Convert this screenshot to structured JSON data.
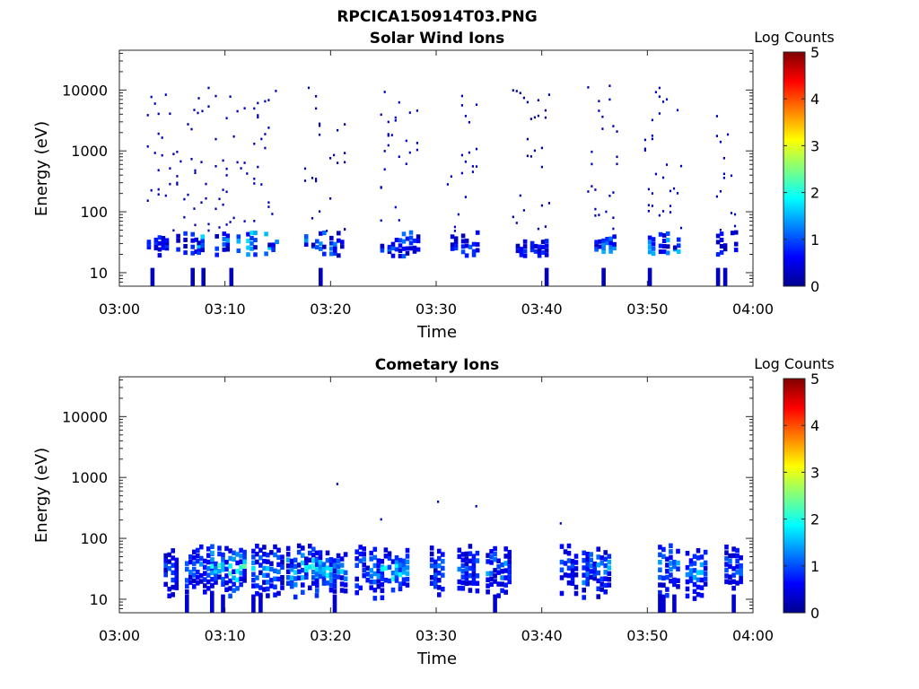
{
  "figure_title": "RPCICA150914T03.PNG",
  "chart_data": [
    {
      "type": "heatmap",
      "title": "Solar Wind Ions",
      "xlabel": "Time",
      "ylabel": "Energy (eV)",
      "y_scale": "log",
      "x_ticks": [
        "03:00",
        "03:10",
        "03:20",
        "03:30",
        "03:40",
        "03:50",
        "04:00"
      ],
      "y_ticks": [
        10,
        100,
        1000,
        10000
      ],
      "xlim": [
        "03:00",
        "04:00"
      ],
      "ylim": [
        6,
        45000
      ],
      "colorbar": {
        "label": "Log Counts",
        "ticks": [
          0,
          1,
          2,
          3,
          4,
          5
        ],
        "range": [
          0,
          5
        ]
      },
      "bursts": [
        {
          "t": 3.5,
          "w": 0.9,
          "dense": 0.7
        },
        {
          "t": 6.5,
          "w": 1.8,
          "dense": 0.9
        },
        {
          "t": 9.5,
          "w": 2.5,
          "dense": 1.5
        },
        {
          "t": 13.5,
          "w": 1.5,
          "dense": 1.6
        },
        {
          "t": 19.5,
          "w": 2.0,
          "dense": 1.2
        },
        {
          "t": 26.5,
          "w": 1.8,
          "dense": 1.0
        },
        {
          "t": 32.5,
          "w": 1.5,
          "dense": 0.9
        },
        {
          "t": 39.0,
          "w": 1.8,
          "dense": 0.7
        },
        {
          "t": 45.8,
          "w": 1.5,
          "dense": 1.3
        },
        {
          "t": 51.5,
          "w": 1.8,
          "dense": 1.4
        },
        {
          "t": 57.5,
          "w": 1.0,
          "dense": 0.6
        }
      ]
    },
    {
      "type": "heatmap",
      "title": "Cometary Ions",
      "xlabel": "Time",
      "ylabel": "Energy (eV)",
      "y_scale": "log",
      "x_ticks": [
        "03:00",
        "03:10",
        "03:20",
        "03:30",
        "03:40",
        "03:50",
        "04:00"
      ],
      "y_ticks": [
        10,
        100,
        1000,
        10000
      ],
      "xlim": [
        "03:00",
        "04:00"
      ],
      "ylim": [
        6,
        45000
      ],
      "colorbar": {
        "label": "Log Counts",
        "ticks": [
          0,
          1,
          2,
          3,
          4,
          5
        ],
        "range": [
          0,
          5
        ]
      },
      "bursts": [
        {
          "t": 4.8,
          "w": 0.6,
          "dense": 1.0
        },
        {
          "t": 7.5,
          "w": 1.3,
          "dense": 1.5
        },
        {
          "t": 10.2,
          "w": 1.6,
          "dense": 2.4
        },
        {
          "t": 14.0,
          "w": 1.5,
          "dense": 1.6
        },
        {
          "t": 17.3,
          "w": 1.5,
          "dense": 2.0
        },
        {
          "t": 20.0,
          "w": 1.5,
          "dense": 1.8
        },
        {
          "t": 23.5,
          "w": 1.2,
          "dense": 1.6
        },
        {
          "t": 26.0,
          "w": 1.3,
          "dense": 2.0
        },
        {
          "t": 30.0,
          "w": 0.6,
          "dense": 1.9
        },
        {
          "t": 33.0,
          "w": 1.0,
          "dense": 1.2
        },
        {
          "t": 35.8,
          "w": 1.1,
          "dense": 1.4
        },
        {
          "t": 42.5,
          "w": 0.8,
          "dense": 1.1
        },
        {
          "t": 45.0,
          "w": 1.2,
          "dense": 1.6
        },
        {
          "t": 52.0,
          "w": 1.0,
          "dense": 1.8
        },
        {
          "t": 54.5,
          "w": 0.9,
          "dense": 1.5
        },
        {
          "t": 58.0,
          "w": 0.7,
          "dense": 1.3
        }
      ]
    }
  ]
}
